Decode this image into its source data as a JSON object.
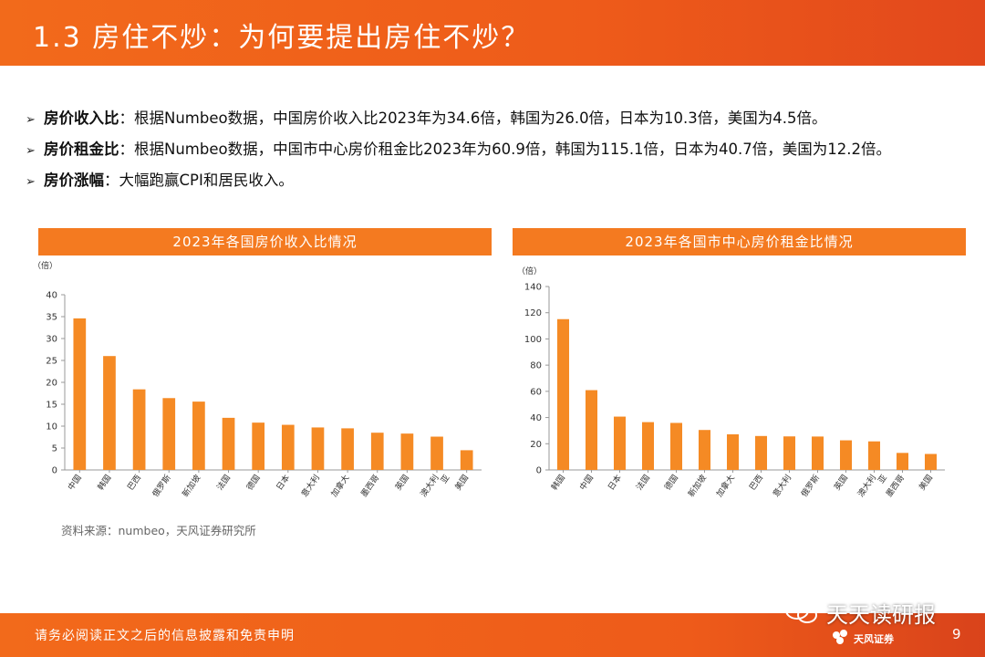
{
  "header": {
    "title": "1.3 房住不炒：为何要提出房住不炒？"
  },
  "bullets": [
    {
      "label": "房价收入比",
      "text": "：根据Numbeo数据，中国房价收入比2023年为34.6倍，韩国为26.0倍，日本为10.3倍，美国为4.5倍。"
    },
    {
      "label": "房价租金比",
      "text": "：根据Numbeo数据，中国市中心房价租金比2023年为60.9倍，韩国为115.1倍，日本为40.7倍，美国为12.2倍。"
    },
    {
      "label": "房价涨幅",
      "text": "：大幅跑赢CPI和居民收入。"
    }
  ],
  "colors": {
    "accent": "#f47a20",
    "header": "#ee5b1a",
    "bar": "#f58a24"
  },
  "chart_data": [
    {
      "type": "bar",
      "title": "2023年各国房价收入比情况",
      "unit": "（倍）",
      "categories": [
        "中国",
        "韩国",
        "巴西",
        "俄罗斯",
        "新加坡",
        "法国",
        "德国",
        "日本",
        "意大利",
        "加拿大",
        "墨西哥",
        "英国",
        "澳大利亚",
        "美国"
      ],
      "values": [
        34.6,
        26.0,
        18.4,
        16.4,
        15.6,
        11.9,
        10.8,
        10.3,
        9.7,
        9.5,
        8.5,
        8.3,
        7.6,
        4.5
      ],
      "ylim": [
        0,
        40
      ],
      "yticks": [
        0,
        5,
        10,
        15,
        20,
        25,
        30,
        35,
        40
      ]
    },
    {
      "type": "bar",
      "title": "2023年各国市中心房价租金比情况",
      "unit": "（倍）",
      "categories": [
        "韩国",
        "中国",
        "日本",
        "法国",
        "德国",
        "新加坡",
        "加拿大",
        "巴西",
        "意大利",
        "俄罗斯",
        "英国",
        "澳大利亚",
        "墨西哥",
        "美国"
      ],
      "values": [
        115.1,
        60.9,
        40.7,
        36.5,
        35.9,
        30.5,
        27.2,
        25.9,
        25.6,
        25.5,
        22.6,
        21.8,
        13.0,
        12.2
      ],
      "ylim": [
        0,
        140
      ],
      "yticks": [
        0,
        20,
        40,
        60,
        80,
        100,
        120,
        140
      ]
    }
  ],
  "source": "资料来源：numbeo，天风证券研究所",
  "footer": {
    "disclaimer": "请务必阅读正文之后的信息披露和免责申明",
    "brand": "天风证券",
    "page": "9",
    "watermark": "天天读研报"
  }
}
